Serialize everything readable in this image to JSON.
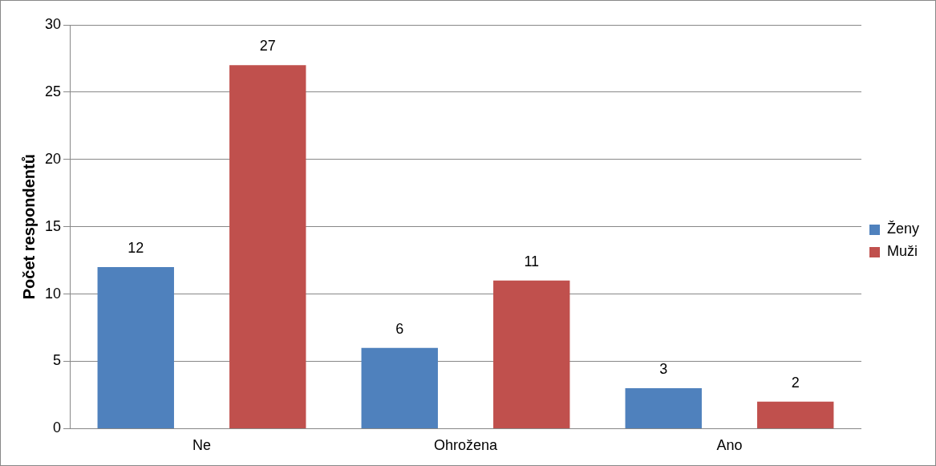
{
  "chart_data": {
    "type": "bar",
    "ylabel": "Počet respondentů",
    "categories": [
      "Ne",
      "Ohrožena",
      "Ano"
    ],
    "series": [
      {
        "name": "Ženy",
        "color": "#4f81bd",
        "values": [
          12,
          6,
          3
        ]
      },
      {
        "name": "Muži",
        "color": "#c0504d",
        "values": [
          27,
          11,
          2
        ]
      }
    ],
    "ylim": [
      0,
      30
    ],
    "yticks": [
      0,
      5,
      10,
      15,
      20,
      25,
      30
    ],
    "grid": "y",
    "legend": "right",
    "data_labels": true
  }
}
